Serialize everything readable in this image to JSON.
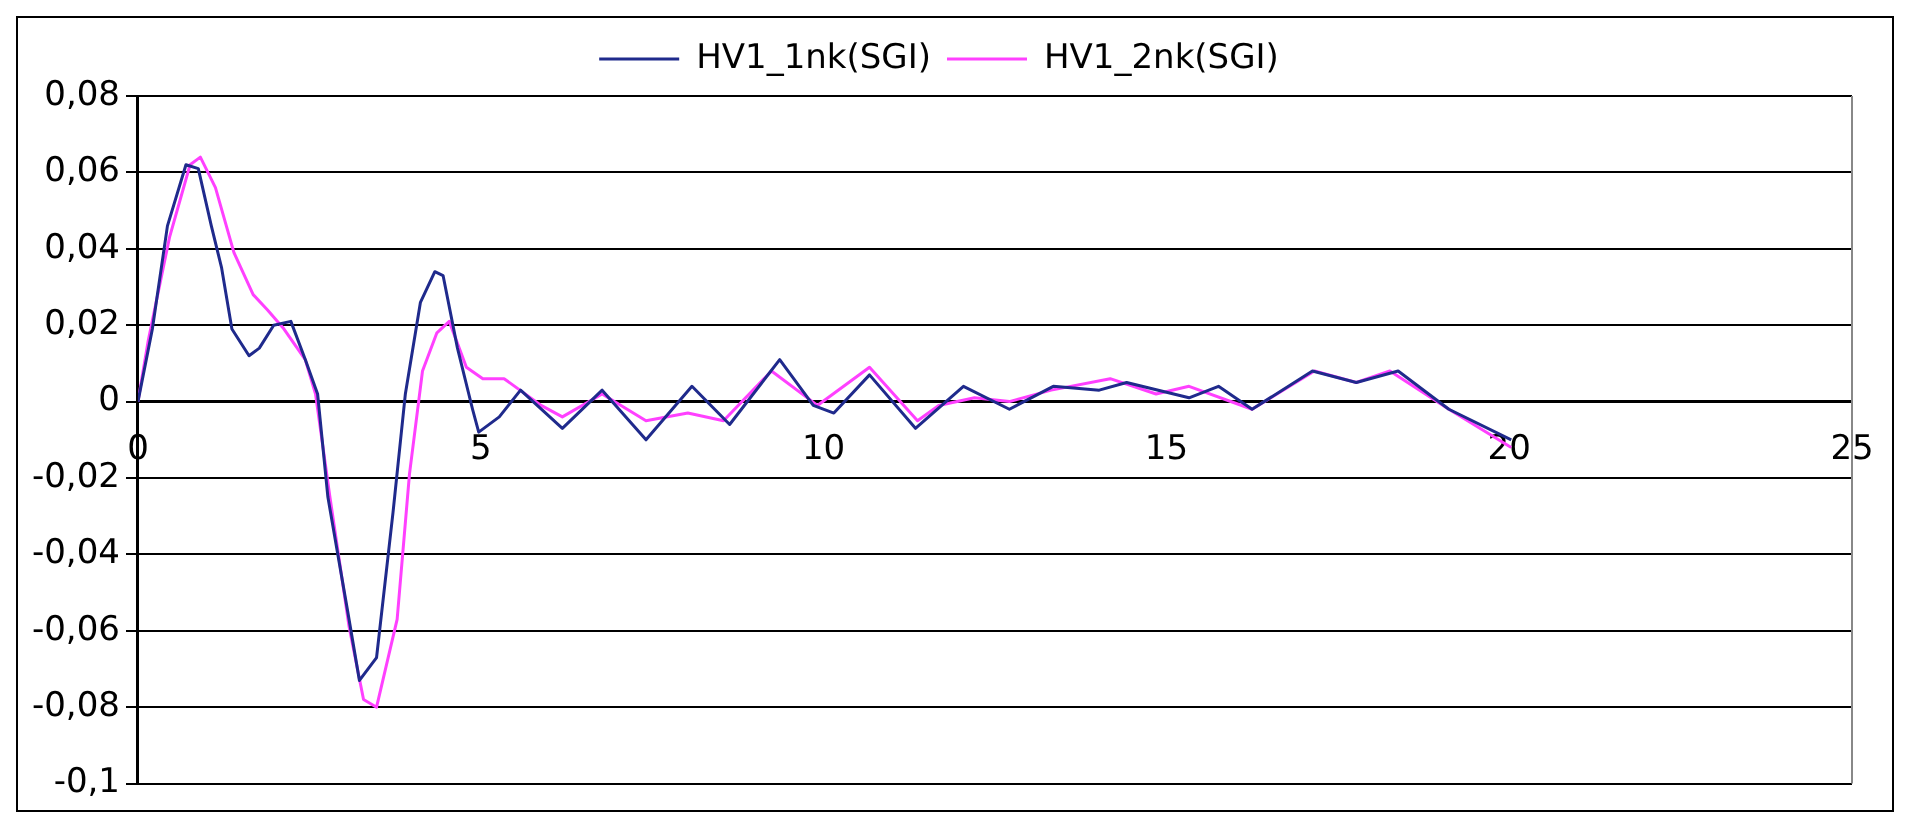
{
  "chart_data": {
    "type": "line",
    "xlim": [
      0,
      25
    ],
    "xticks": [
      0,
      5,
      10,
      15,
      20,
      25
    ],
    "ylim": [
      -0.1,
      0.08
    ],
    "yticks": [
      {
        "value": -0.1,
        "label": "-0,1"
      },
      {
        "value": -0.08,
        "label": "-0,08"
      },
      {
        "value": -0.06,
        "label": "-0,06"
      },
      {
        "value": -0.04,
        "label": "-0,04"
      },
      {
        "value": -0.02,
        "label": "-0,02"
      },
      {
        "value": 0,
        "label": "0"
      },
      {
        "value": 0.02,
        "label": "0,02"
      },
      {
        "value": 0.04,
        "label": "0,04"
      },
      {
        "value": 0.06,
        "label": "0,06"
      },
      {
        "value": 0.08,
        "label": "0,08"
      }
    ],
    "grid": "y",
    "legend": "top",
    "marker": "none",
    "series": [
      {
        "name": "HV1_1nk(SGI)",
        "color": "#1f2a8c",
        "x": [
          0,
          0.21,
          0.43,
          0.7,
          0.88,
          1.07,
          1.22,
          1.37,
          1.62,
          1.77,
          1.98,
          2.23,
          2.44,
          2.62,
          2.77,
          3.05,
          3.23,
          3.48,
          3.72,
          3.9,
          4.12,
          4.33,
          4.45,
          4.66,
          4.88,
          4.97,
          5.27,
          5.58,
          6.19,
          6.77,
          7.41,
          8.08,
          8.63,
          9.36,
          9.85,
          10.15,
          10.67,
          11.34,
          12.04,
          12.71,
          13.35,
          14.02,
          14.42,
          15.33,
          15.76,
          16.25,
          17.13,
          17.77,
          18.38,
          19.12,
          20.03
        ],
        "values": [
          0,
          0.019,
          0.046,
          0.062,
          0.061,
          0.046,
          0.035,
          0.019,
          0.012,
          0.014,
          0.02,
          0.021,
          0.011,
          0.002,
          -0.025,
          -0.054,
          -0.073,
          -0.067,
          -0.029,
          0.002,
          0.026,
          0.034,
          0.033,
          0.014,
          -0.002,
          -0.008,
          -0.004,
          0.003,
          -0.007,
          0.003,
          -0.01,
          0.004,
          -0.006,
          0.011,
          -0.001,
          -0.003,
          0.007,
          -0.007,
          0.004,
          -0.002,
          0.004,
          0.003,
          0.005,
          0.001,
          0.004,
          -0.002,
          0.008,
          0.005,
          0.008,
          -0.002,
          -0.01
        ]
      },
      {
        "name": "HV1_2nk(SGI)",
        "color": "#ff40ff",
        "x": [
          0,
          0.15,
          0.46,
          0.76,
          0.91,
          1.13,
          1.4,
          1.68,
          1.89,
          2.13,
          2.44,
          2.59,
          2.8,
          3.08,
          3.29,
          3.48,
          3.78,
          3.96,
          4.15,
          4.36,
          4.54,
          4.79,
          5.03,
          5.34,
          5.88,
          6.19,
          6.77,
          7.41,
          8.02,
          8.54,
          9.24,
          9.91,
          10.67,
          11.37,
          11.68,
          12.2,
          12.71,
          13.32,
          14.18,
          14.85,
          15.33,
          16.25,
          17.16,
          17.77,
          18.26,
          19.12,
          20.03
        ],
        "values": [
          0,
          0.016,
          0.043,
          0.062,
          0.064,
          0.056,
          0.039,
          0.028,
          0.024,
          0.019,
          0.011,
          0.002,
          -0.025,
          -0.059,
          -0.078,
          -0.08,
          -0.057,
          -0.019,
          0.008,
          0.018,
          0.021,
          0.009,
          0.006,
          0.006,
          -0.001,
          -0.004,
          0.002,
          -0.005,
          -0.003,
          -0.005,
          0.008,
          -0.001,
          0.009,
          -0.005,
          -0.001,
          0.001,
          0,
          0.003,
          0.006,
          0.002,
          0.004,
          -0.002,
          0.008,
          0.005,
          0.008,
          -0.002,
          -0.012
        ]
      }
    ]
  }
}
